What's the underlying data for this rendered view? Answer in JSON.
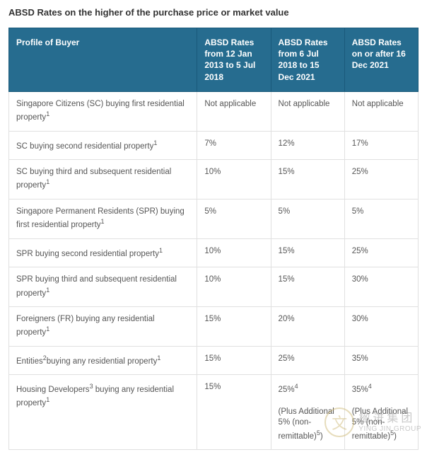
{
  "title": "ABSD Rates on the higher of the purchase price or market value",
  "colors": {
    "header_bg": "#266c8f",
    "border": "#e0e0e0",
    "text": "#565656",
    "title": "#333333"
  },
  "table": {
    "columns": [
      {
        "label": "Profile of Buyer",
        "width_pct": 46
      },
      {
        "label": "ABSD Rates from 12 Jan 2013 to 5 Jul 2018",
        "width_pct": 18
      },
      {
        "label": "ABSD Rates from 6 Jul 2018 to 15 Dec 2021",
        "width_pct": 18
      },
      {
        "label": "ABSD Rates on or after 16 Dec 2021",
        "width_pct": 18
      }
    ],
    "rows": [
      {
        "profile": "Singapore Citizens (SC) buying first residential property",
        "profile_sup": "1",
        "r1": "Not applicable",
        "r2": "Not applicable",
        "r3": "Not applicable"
      },
      {
        "profile": "SC buying second residential property",
        "profile_sup": "1",
        "r1": "7%",
        "r2": "12%",
        "r3": "17%"
      },
      {
        "profile": "SC buying third and subsequent residential property",
        "profile_sup": "1",
        "r1": "10%",
        "r2": "15%",
        "r3": "25%"
      },
      {
        "profile": "Singapore Permanent Residents (SPR) buying first residential property",
        "profile_sup": "1",
        "r1": "5%",
        "r2": "5%",
        "r3": "5%"
      },
      {
        "profile": "SPR buying second residential property",
        "profile_sup": "1",
        "r1": "10%",
        "r2": "15%",
        "r3": "25%"
      },
      {
        "profile": "SPR buying third and subsequent residential property",
        "profile_sup": "1",
        "r1": "10%",
        "r2": "15%",
        "r3": "30%"
      },
      {
        "profile": "Foreigners (FR) buying any residential property",
        "profile_sup": "1",
        "r1": "15%",
        "r2": "20%",
        "r3": "30%"
      },
      {
        "profile_pre": "Entities",
        "profile_mid_sup": "2",
        "profile_post": "buying any residential property",
        "profile_sup": "1",
        "r1": "15%",
        "r2": "25%",
        "r3": "35%"
      },
      {
        "profile_pre": "Housing Developers",
        "profile_mid_sup": "3",
        "profile_post": " buying any residential property",
        "profile_sup": "1",
        "r1": "15%",
        "r2_main": "25%",
        "r2_sup": "4",
        "r2_extra": "(Plus Additional 5% (non-remittable)",
        "r2_extra_sup": "5",
        "r2_extra_close": ")",
        "r3_main": "35%",
        "r3_sup": "4",
        "r3_extra": "(Plus Additional 5% (non-remittable)",
        "r3_extra_sup": "5",
        "r3_extra_close": ")"
      }
    ]
  },
  "watermark": {
    "logo_char": "文",
    "cn": "楹进集团",
    "en": "YING JIN GROUP"
  }
}
